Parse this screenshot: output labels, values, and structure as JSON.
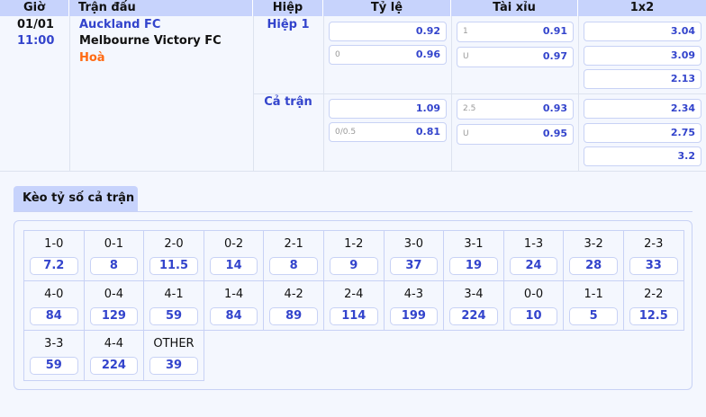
{
  "headers": [
    "Giờ",
    "Trận đấu",
    "Hiệp",
    "Tỷ lệ",
    "Tài xỉu",
    "1x2"
  ],
  "match": {
    "date": "01/01",
    "time": "11:00",
    "home": "Auckland FC",
    "away": "Melbourne Victory FC",
    "draw": "Hoà"
  },
  "periods": [
    {
      "name": "Hiệp 1",
      "handicap": [
        {
          "line": "",
          "odds": "0.92"
        },
        {
          "line": "0",
          "odds": "0.96"
        }
      ],
      "overunder": [
        {
          "line": "1",
          "odds": "0.91"
        },
        {
          "line": "U",
          "odds": "0.97"
        }
      ],
      "x12": [
        "3.04",
        "3.09",
        "2.13"
      ]
    },
    {
      "name": "Cả trận",
      "handicap": [
        {
          "line": "",
          "odds": "1.09"
        },
        {
          "line": "0/0.5",
          "odds": "0.81"
        }
      ],
      "overunder": [
        {
          "line": "2.5",
          "odds": "0.93"
        },
        {
          "line": "U",
          "odds": "0.95"
        }
      ],
      "x12": [
        "2.34",
        "2.75",
        "3.2"
      ]
    }
  ],
  "correct_score": {
    "tab": "Kèo tỷ số cả trận",
    "items": [
      {
        "score": "1-0",
        "odds": "7.2"
      },
      {
        "score": "0-1",
        "odds": "8"
      },
      {
        "score": "2-0",
        "odds": "11.5"
      },
      {
        "score": "0-2",
        "odds": "14"
      },
      {
        "score": "2-1",
        "odds": "8"
      },
      {
        "score": "1-2",
        "odds": "9"
      },
      {
        "score": "3-0",
        "odds": "37"
      },
      {
        "score": "3-1",
        "odds": "19"
      },
      {
        "score": "1-3",
        "odds": "24"
      },
      {
        "score": "3-2",
        "odds": "28"
      },
      {
        "score": "2-3",
        "odds": "33"
      },
      {
        "score": "4-0",
        "odds": "84"
      },
      {
        "score": "0-4",
        "odds": "129"
      },
      {
        "score": "4-1",
        "odds": "59"
      },
      {
        "score": "1-4",
        "odds": "84"
      },
      {
        "score": "4-2",
        "odds": "89"
      },
      {
        "score": "2-4",
        "odds": "114"
      },
      {
        "score": "4-3",
        "odds": "199"
      },
      {
        "score": "3-4",
        "odds": "224"
      },
      {
        "score": "0-0",
        "odds": "10"
      },
      {
        "score": "1-1",
        "odds": "5"
      },
      {
        "score": "2-2",
        "odds": "12.5"
      },
      {
        "score": "3-3",
        "odds": "59"
      },
      {
        "score": "4-4",
        "odds": "224"
      },
      {
        "score": "OTHER",
        "odds": "39"
      }
    ]
  },
  "colors": {
    "header": "#c7d3fc",
    "odds": "#3344cc",
    "home": "#3344cc",
    "draw": "#ff6a13"
  }
}
